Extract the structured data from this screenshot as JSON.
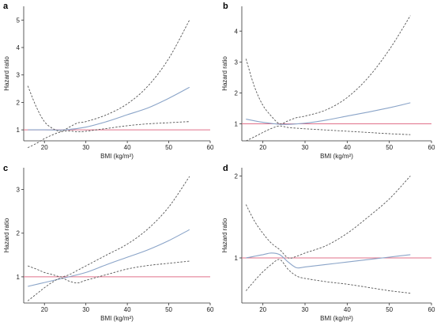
{
  "chart_data": [
    {
      "type": "line",
      "panel_label": "a",
      "xlabel": "BMI (kg/m²)",
      "ylabel": "Hazard ratio",
      "xlim": [
        15,
        60
      ],
      "ylim": [
        0.6,
        5.5
      ],
      "xticks": [
        20,
        30,
        40,
        50,
        60
      ],
      "yticks": [
        1,
        2,
        3,
        4,
        5
      ],
      "reference_line": 1,
      "series": [
        {
          "role": "estimate",
          "x": [
            16,
            20,
            25,
            30,
            35,
            40,
            45,
            50,
            55
          ],
          "y": [
            1.0,
            1.0,
            1.0,
            1.1,
            1.3,
            1.55,
            1.8,
            2.15,
            2.55
          ]
        },
        {
          "role": "ci_upper",
          "x": [
            16,
            18,
            20,
            22,
            24,
            26,
            28,
            30,
            35,
            40,
            45,
            50,
            55
          ],
          "y": [
            2.6,
            1.85,
            1.3,
            1.05,
            0.95,
            1.1,
            1.25,
            1.3,
            1.55,
            1.95,
            2.6,
            3.6,
            5.0
          ]
        },
        {
          "role": "ci_lower",
          "x": [
            16,
            18,
            20,
            22,
            24,
            26,
            28,
            30,
            35,
            40,
            45,
            50,
            55
          ],
          "y": [
            0.35,
            0.5,
            0.68,
            0.82,
            0.93,
            0.96,
            0.93,
            0.95,
            1.05,
            1.15,
            1.22,
            1.26,
            1.3
          ]
        }
      ]
    },
    {
      "type": "line",
      "panel_label": "b",
      "xlabel": "BMI (kg/m²)",
      "ylabel": "Hazard ratio",
      "xlim": [
        15,
        60
      ],
      "ylim": [
        0.45,
        4.8
      ],
      "xticks": [
        20,
        30,
        40,
        50,
        60
      ],
      "yticks": [
        1,
        2,
        3,
        4
      ],
      "reference_line": 1,
      "series": [
        {
          "role": "estimate",
          "x": [
            16,
            20,
            25,
            30,
            35,
            40,
            45,
            50,
            55
          ],
          "y": [
            1.15,
            1.05,
            0.98,
            1.02,
            1.12,
            1.25,
            1.38,
            1.52,
            1.68
          ]
        },
        {
          "role": "ci_upper",
          "x": [
            16,
            18,
            20,
            22,
            24,
            26,
            28,
            30,
            35,
            40,
            45,
            50,
            55
          ],
          "y": [
            3.1,
            2.2,
            1.6,
            1.25,
            1.0,
            1.1,
            1.2,
            1.25,
            1.45,
            1.85,
            2.5,
            3.4,
            4.5
          ]
        },
        {
          "role": "ci_lower",
          "x": [
            16,
            18,
            20,
            22,
            24,
            26,
            28,
            30,
            35,
            40,
            45,
            50,
            55
          ],
          "y": [
            0.45,
            0.58,
            0.72,
            0.85,
            0.93,
            0.88,
            0.86,
            0.84,
            0.8,
            0.76,
            0.72,
            0.68,
            0.65
          ]
        }
      ]
    },
    {
      "type": "line",
      "panel_label": "c",
      "xlabel": "BMI (kg/m²)",
      "ylabel": "Hazard ratio",
      "xlim": [
        15,
        60
      ],
      "ylim": [
        0.4,
        3.5
      ],
      "xticks": [
        20,
        30,
        40,
        50,
        60
      ],
      "yticks": [
        1,
        2,
        3
      ],
      "reference_line": 1,
      "series": [
        {
          "role": "estimate",
          "x": [
            16,
            20,
            25,
            30,
            35,
            40,
            45,
            50,
            55
          ],
          "y": [
            0.78,
            0.87,
            0.98,
            1.1,
            1.28,
            1.45,
            1.62,
            1.83,
            2.08
          ]
        },
        {
          "role": "ci_upper",
          "x": [
            16,
            18,
            20,
            22,
            24,
            26,
            28,
            30,
            35,
            40,
            45,
            50,
            55
          ],
          "y": [
            1.25,
            1.18,
            1.1,
            1.05,
            1.0,
            1.05,
            1.15,
            1.25,
            1.5,
            1.75,
            2.1,
            2.6,
            3.3
          ]
        },
        {
          "role": "ci_lower",
          "x": [
            16,
            18,
            20,
            22,
            24,
            26,
            28,
            30,
            35,
            40,
            45,
            50,
            55
          ],
          "y": [
            0.45,
            0.6,
            0.75,
            0.88,
            0.97,
            0.9,
            0.86,
            0.92,
            1.05,
            1.18,
            1.26,
            1.31,
            1.36
          ]
        }
      ]
    },
    {
      "type": "line",
      "panel_label": "d",
      "xlabel": "BMI (kg/m²)",
      "ylabel": "Hazard ratio",
      "xlim": [
        15,
        60
      ],
      "ylim": [
        0.45,
        2.1
      ],
      "xticks": [
        20,
        30,
        40,
        50,
        60
      ],
      "yticks": [
        1,
        2
      ],
      "reference_line": 1,
      "series": [
        {
          "role": "estimate",
          "x": [
            16,
            18,
            20,
            22,
            24,
            26,
            28,
            30,
            35,
            40,
            45,
            50,
            55
          ],
          "y": [
            1.0,
            1.02,
            1.04,
            1.06,
            1.04,
            0.95,
            0.88,
            0.89,
            0.92,
            0.95,
            0.98,
            1.01,
            1.04
          ]
        },
        {
          "role": "ci_upper",
          "x": [
            16,
            18,
            20,
            22,
            24,
            26,
            28,
            30,
            35,
            40,
            45,
            50,
            55
          ],
          "y": [
            1.65,
            1.45,
            1.3,
            1.18,
            1.1,
            1.0,
            1.02,
            1.06,
            1.15,
            1.3,
            1.5,
            1.72,
            2.0
          ]
        },
        {
          "role": "ci_lower",
          "x": [
            16,
            18,
            20,
            22,
            24,
            26,
            28,
            30,
            35,
            40,
            45,
            50,
            55
          ],
          "y": [
            0.6,
            0.72,
            0.83,
            0.92,
            0.98,
            0.86,
            0.78,
            0.75,
            0.71,
            0.68,
            0.64,
            0.6,
            0.57
          ]
        }
      ]
    }
  ]
}
